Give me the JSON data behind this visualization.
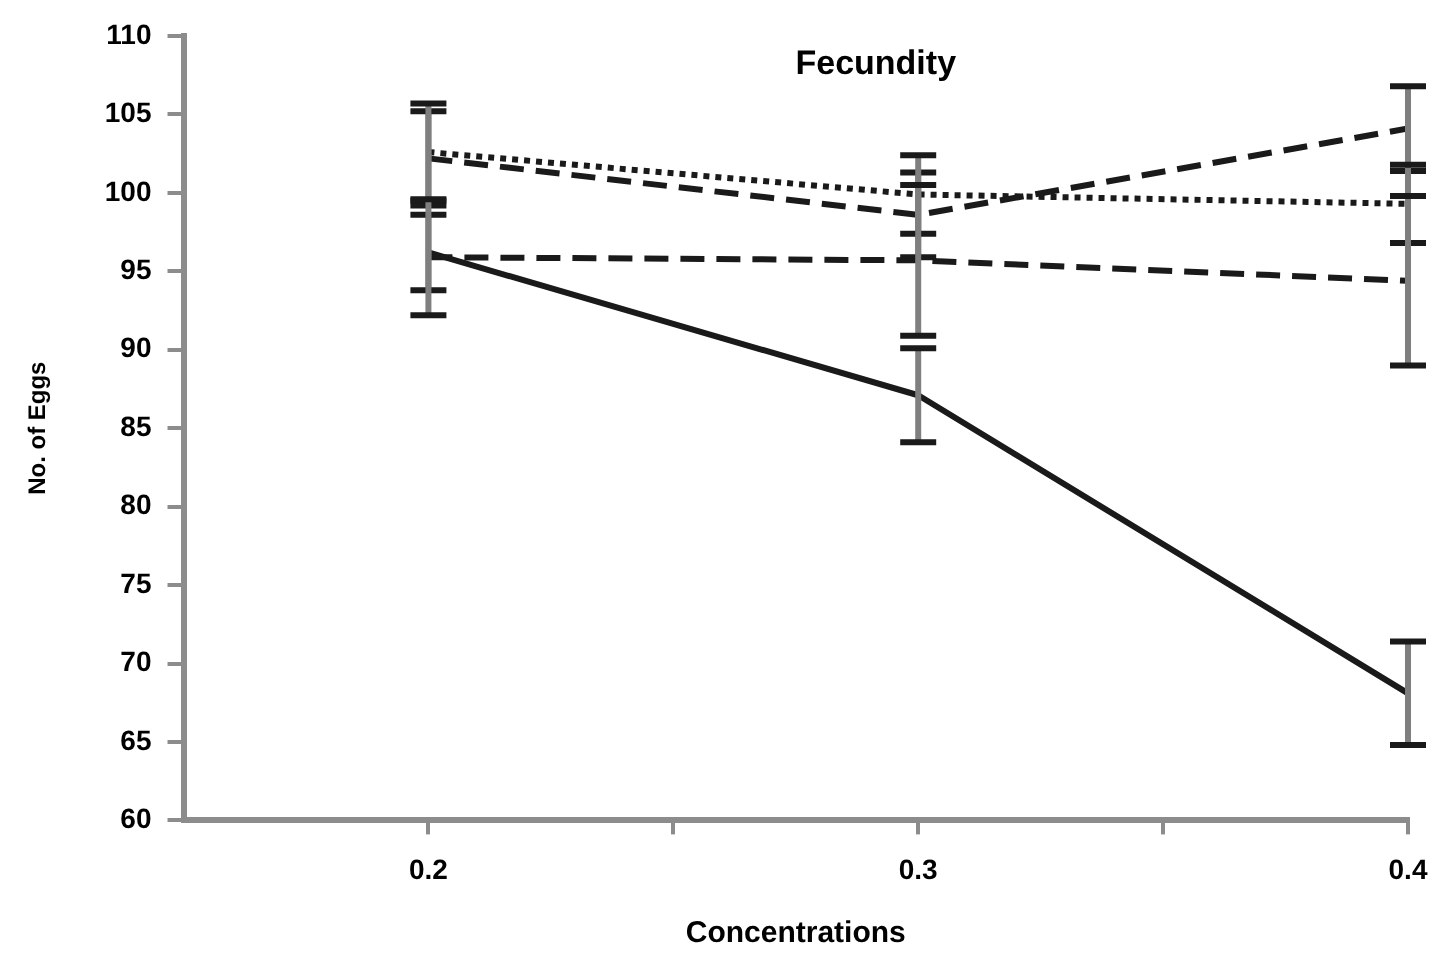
{
  "chart_data": {
    "type": "line",
    "title": "Fecundity",
    "xlabel": "Concentrations",
    "ylabel": "No. of Eggs",
    "x": [
      0.2,
      0.3,
      0.4
    ],
    "series": [
      {
        "color": "#1a1a1a",
        "line_style": "solid",
        "values": [
          96.2,
          87.1,
          68.1
        ],
        "errors": [
          2.4,
          3.0,
          3.3
        ]
      },
      {
        "color": "#1a1a1a",
        "line_style": "dashed",
        "values": [
          102.2,
          98.6,
          104.1
        ],
        "errors": [
          3.0,
          2.7,
          2.7
        ]
      },
      {
        "color": "#1a1a1a",
        "line_style": "dotted",
        "values": [
          102.6,
          99.9,
          99.3
        ],
        "errors": [
          3.1,
          2.5,
          2.5
        ]
      },
      {
        "color": "#1a1a1a",
        "line_style": "dashed",
        "values": [
          95.9,
          95.7,
          94.4
        ],
        "errors": [
          3.7,
          4.8,
          5.4
        ]
      }
    ],
    "xlim": [
      0.15,
      0.4
    ],
    "xticks": [
      0.2,
      {
        "value": 0.25,
        "label": null
      },
      0.3,
      {
        "value": 0.35,
        "label": null
      },
      0.4
    ],
    "ylim": [
      60,
      110
    ],
    "yticks": [
      60,
      65,
      70,
      75,
      80,
      85,
      90,
      95,
      100,
      105,
      110
    ],
    "grid": false,
    "legend": false,
    "marker": "none"
  }
}
